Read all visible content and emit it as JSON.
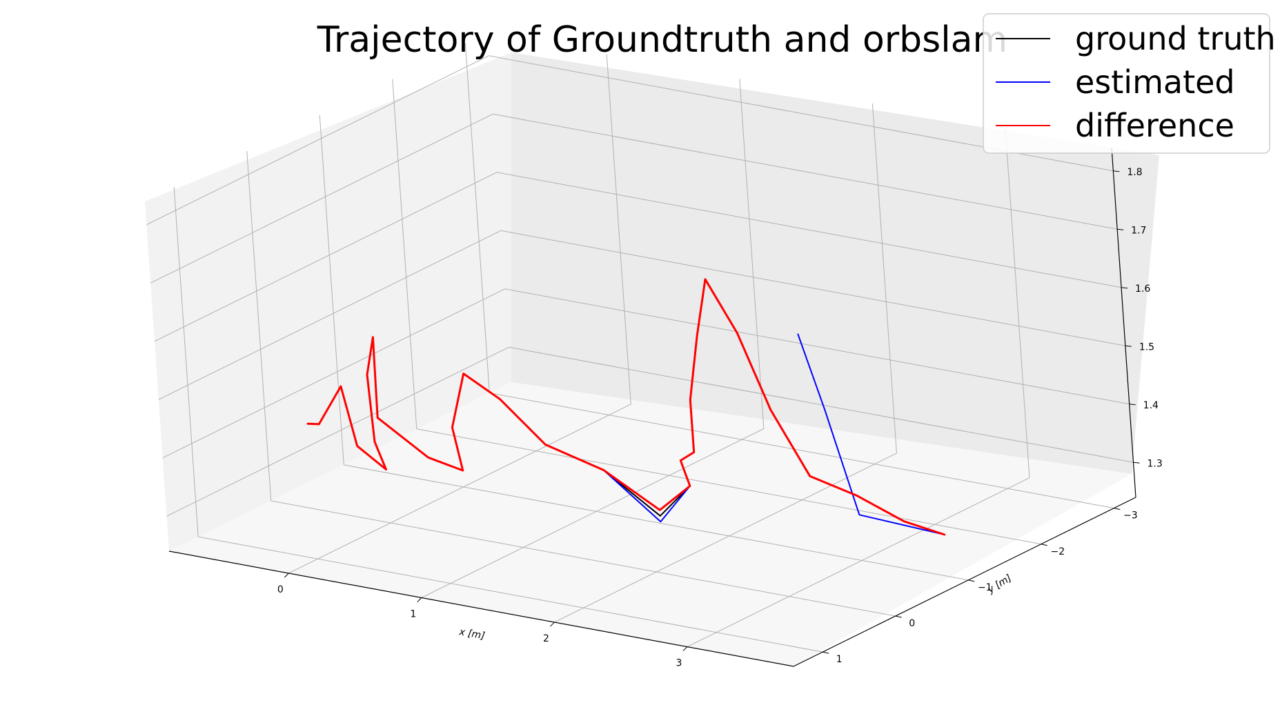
{
  "chart_data": {
    "type": "line",
    "projection": "3d",
    "title": "Trajectory of Groundtruth and orbslam",
    "xlabel": "x [m]",
    "ylabel": "y [m]",
    "zlabel": "",
    "xticks": [
      "0",
      "1",
      "2",
      "3"
    ],
    "yticks": [
      "1",
      "0",
      "−1",
      "−2",
      "−3"
    ],
    "zticks": [
      "1.3",
      "1.4",
      "1.5",
      "1.6",
      "1.7",
      "1.8"
    ],
    "xlim": [
      -0.9,
      3.8
    ],
    "ylim": [
      -3.3,
      1.4
    ],
    "zlim": [
      1.24,
      1.84
    ],
    "grid": true,
    "legend_position": "top-right",
    "legend": [
      {
        "label": "ground truth",
        "color": "#000000"
      },
      {
        "label": "estimated",
        "color": "#0000ff"
      },
      {
        "label": "difference",
        "color": "#ff0000"
      }
    ],
    "series": [
      {
        "name": "ground truth",
        "color": "#000000",
        "points": [
          [
            -0.55,
            0.05,
            1.39
          ],
          [
            -0.35,
            0.25,
            1.41
          ],
          [
            -0.25,
            0.1,
            1.47
          ],
          [
            -0.3,
            -0.15,
            1.35
          ],
          [
            -0.15,
            -0.25,
            1.31
          ],
          [
            -0.05,
            0.05,
            1.38
          ],
          [
            0.1,
            0.35,
            1.52
          ],
          [
            0.25,
            0.5,
            1.6
          ],
          [
            0.1,
            0.25,
            1.44
          ],
          [
            0.35,
            0.05,
            1.37
          ],
          [
            0.55,
            -0.05,
            1.35
          ],
          [
            0.75,
            0.4,
            1.46
          ],
          [
            0.95,
            0.55,
            1.57
          ],
          [
            1.1,
            0.35,
            1.52
          ],
          [
            1.25,
            0.05,
            1.43
          ],
          [
            1.45,
            -0.35,
            1.37
          ],
          [
            1.6,
            -0.8,
            1.27
          ],
          [
            1.9,
            -0.7,
            1.34
          ],
          [
            2.1,
            -0.25,
            1.42
          ],
          [
            2.35,
            0.0,
            1.46
          ],
          [
            2.55,
            0.35,
            1.58
          ],
          [
            2.75,
            0.55,
            1.71
          ],
          [
            2.9,
            0.65,
            1.82
          ],
          [
            3.0,
            0.45,
            1.72
          ],
          [
            3.1,
            0.25,
            1.58
          ],
          [
            3.25,
            0.05,
            1.46
          ],
          [
            3.45,
            -0.2,
            1.42
          ],
          [
            3.6,
            -0.55,
            1.36
          ],
          [
            3.7,
            -0.9,
            1.32
          ]
        ]
      },
      {
        "name": "estimated",
        "color": "#0000ff",
        "points": [
          [
            -0.55,
            0.05,
            1.39
          ],
          [
            -0.35,
            0.25,
            1.41
          ],
          [
            -0.25,
            0.1,
            1.47
          ],
          [
            -0.3,
            -0.15,
            1.35
          ],
          [
            -0.15,
            -0.25,
            1.31
          ],
          [
            -0.05,
            0.05,
            1.38
          ],
          [
            0.1,
            0.35,
            1.52
          ],
          [
            0.25,
            0.5,
            1.6
          ],
          [
            0.1,
            0.25,
            1.44
          ],
          [
            0.35,
            0.05,
            1.37
          ],
          [
            0.55,
            -0.05,
            1.35
          ],
          [
            0.75,
            0.4,
            1.46
          ],
          [
            0.95,
            0.55,
            1.57
          ],
          [
            1.1,
            0.35,
            1.52
          ],
          [
            1.25,
            0.05,
            1.43
          ],
          [
            1.45,
            -0.35,
            1.37
          ],
          [
            1.6,
            -0.8,
            1.26
          ],
          [
            1.9,
            -0.7,
            1.34
          ],
          [
            2.1,
            -0.25,
            1.42
          ],
          [
            2.35,
            0.0,
            1.46
          ],
          [
            2.55,
            0.35,
            1.58
          ],
          [
            2.75,
            0.55,
            1.71
          ],
          [
            2.9,
            0.65,
            1.82
          ],
          [
            3.0,
            0.45,
            1.72
          ],
          [
            3.1,
            0.25,
            1.58
          ],
          [
            3.25,
            0.05,
            1.46
          ],
          [
            3.45,
            -0.2,
            1.42
          ],
          [
            3.6,
            -0.55,
            1.36
          ],
          [
            3.7,
            -0.9,
            1.32
          ],
          [
            3.75,
            0.3,
            1.43
          ],
          [
            3.8,
            0.75,
            1.64
          ],
          [
            3.75,
            0.95,
            1.78
          ]
        ]
      },
      {
        "name": "difference",
        "color": "#ff0000",
        "points": [
          [
            -0.55,
            0.05,
            1.39
          ],
          [
            -0.35,
            0.25,
            1.41
          ],
          [
            -0.25,
            0.1,
            1.47
          ],
          [
            -0.3,
            -0.15,
            1.35
          ],
          [
            -0.15,
            -0.25,
            1.31
          ],
          [
            -0.05,
            0.05,
            1.38
          ],
          [
            0.1,
            0.35,
            1.52
          ],
          [
            0.25,
            0.5,
            1.6
          ],
          [
            0.1,
            0.25,
            1.44
          ],
          [
            0.35,
            0.05,
            1.37
          ],
          [
            0.55,
            -0.05,
            1.35
          ],
          [
            0.75,
            0.4,
            1.46
          ],
          [
            0.95,
            0.55,
            1.57
          ],
          [
            1.1,
            0.35,
            1.52
          ],
          [
            1.25,
            0.05,
            1.43
          ],
          [
            1.45,
            -0.35,
            1.37
          ],
          [
            1.6,
            -0.8,
            1.28
          ],
          [
            1.9,
            -0.7,
            1.34
          ],
          [
            2.1,
            -0.25,
            1.42
          ],
          [
            2.35,
            0.0,
            1.46
          ],
          [
            2.55,
            0.35,
            1.58
          ],
          [
            2.75,
            0.55,
            1.71
          ],
          [
            2.9,
            0.65,
            1.82
          ],
          [
            3.0,
            0.45,
            1.72
          ],
          [
            3.1,
            0.25,
            1.58
          ],
          [
            3.25,
            0.05,
            1.46
          ],
          [
            3.45,
            -0.2,
            1.42
          ],
          [
            3.6,
            -0.55,
            1.36
          ],
          [
            3.7,
            -0.9,
            1.32
          ]
        ]
      }
    ]
  }
}
